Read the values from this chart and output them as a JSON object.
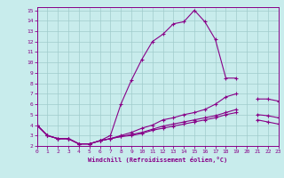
{
  "xlabel": "Windchill (Refroidissement éolien,°C)",
  "xlim": [
    0,
    23
  ],
  "ylim": [
    2,
    15
  ],
  "xticks": [
    0,
    1,
    2,
    3,
    4,
    5,
    6,
    7,
    8,
    9,
    10,
    11,
    12,
    13,
    14,
    15,
    16,
    17,
    18,
    19,
    20,
    21,
    22,
    23
  ],
  "yticks": [
    2,
    3,
    4,
    5,
    6,
    7,
    8,
    9,
    10,
    11,
    12,
    13,
    14,
    15
  ],
  "bg_color": "#c8ecec",
  "line_color": "#880088",
  "grid_color": "#a0cccc",
  "curves": [
    {
      "x": [
        0,
        1,
        2,
        3,
        4,
        5,
        6,
        7,
        8,
        9,
        10,
        11,
        12,
        13,
        14,
        15,
        16,
        17,
        18,
        19,
        20,
        21,
        22,
        23
      ],
      "y": [
        4.0,
        3.0,
        2.7,
        2.7,
        2.2,
        2.2,
        2.5,
        3.0,
        6.0,
        8.3,
        10.3,
        12.0,
        12.7,
        13.7,
        13.9,
        15.0,
        13.9,
        12.2,
        8.5,
        8.5,
        null,
        null,
        null,
        null
      ]
    },
    {
      "x": [
        0,
        1,
        2,
        3,
        4,
        5,
        6,
        7,
        8,
        9,
        10,
        11,
        12,
        13,
        14,
        15,
        16,
        17,
        18,
        19,
        20,
        21,
        22,
        23
      ],
      "y": [
        4.0,
        3.0,
        2.7,
        2.7,
        2.2,
        2.2,
        2.5,
        2.7,
        3.0,
        3.3,
        3.7,
        4.0,
        4.5,
        4.7,
        5.0,
        5.2,
        5.5,
        6.0,
        6.7,
        7.0,
        null,
        6.5,
        6.5,
        6.3
      ]
    },
    {
      "x": [
        0,
        1,
        2,
        3,
        4,
        5,
        6,
        7,
        8,
        9,
        10,
        11,
        12,
        13,
        14,
        15,
        16,
        17,
        18,
        19,
        20,
        21,
        22,
        23
      ],
      "y": [
        4.0,
        3.0,
        2.7,
        2.7,
        2.2,
        2.2,
        2.5,
        2.7,
        2.9,
        3.1,
        3.3,
        3.6,
        3.9,
        4.1,
        4.3,
        4.5,
        4.7,
        4.9,
        5.2,
        5.5,
        null,
        5.0,
        4.9,
        4.7
      ]
    },
    {
      "x": [
        0,
        1,
        2,
        3,
        4,
        5,
        6,
        7,
        8,
        9,
        10,
        11,
        12,
        13,
        14,
        15,
        16,
        17,
        18,
        19,
        20,
        21,
        22,
        23
      ],
      "y": [
        4.0,
        3.0,
        2.7,
        2.7,
        2.2,
        2.2,
        2.5,
        2.7,
        2.9,
        3.0,
        3.2,
        3.5,
        3.7,
        3.9,
        4.1,
        4.3,
        4.5,
        4.7,
        5.0,
        5.2,
        null,
        4.5,
        4.3,
        4.1
      ]
    }
  ]
}
